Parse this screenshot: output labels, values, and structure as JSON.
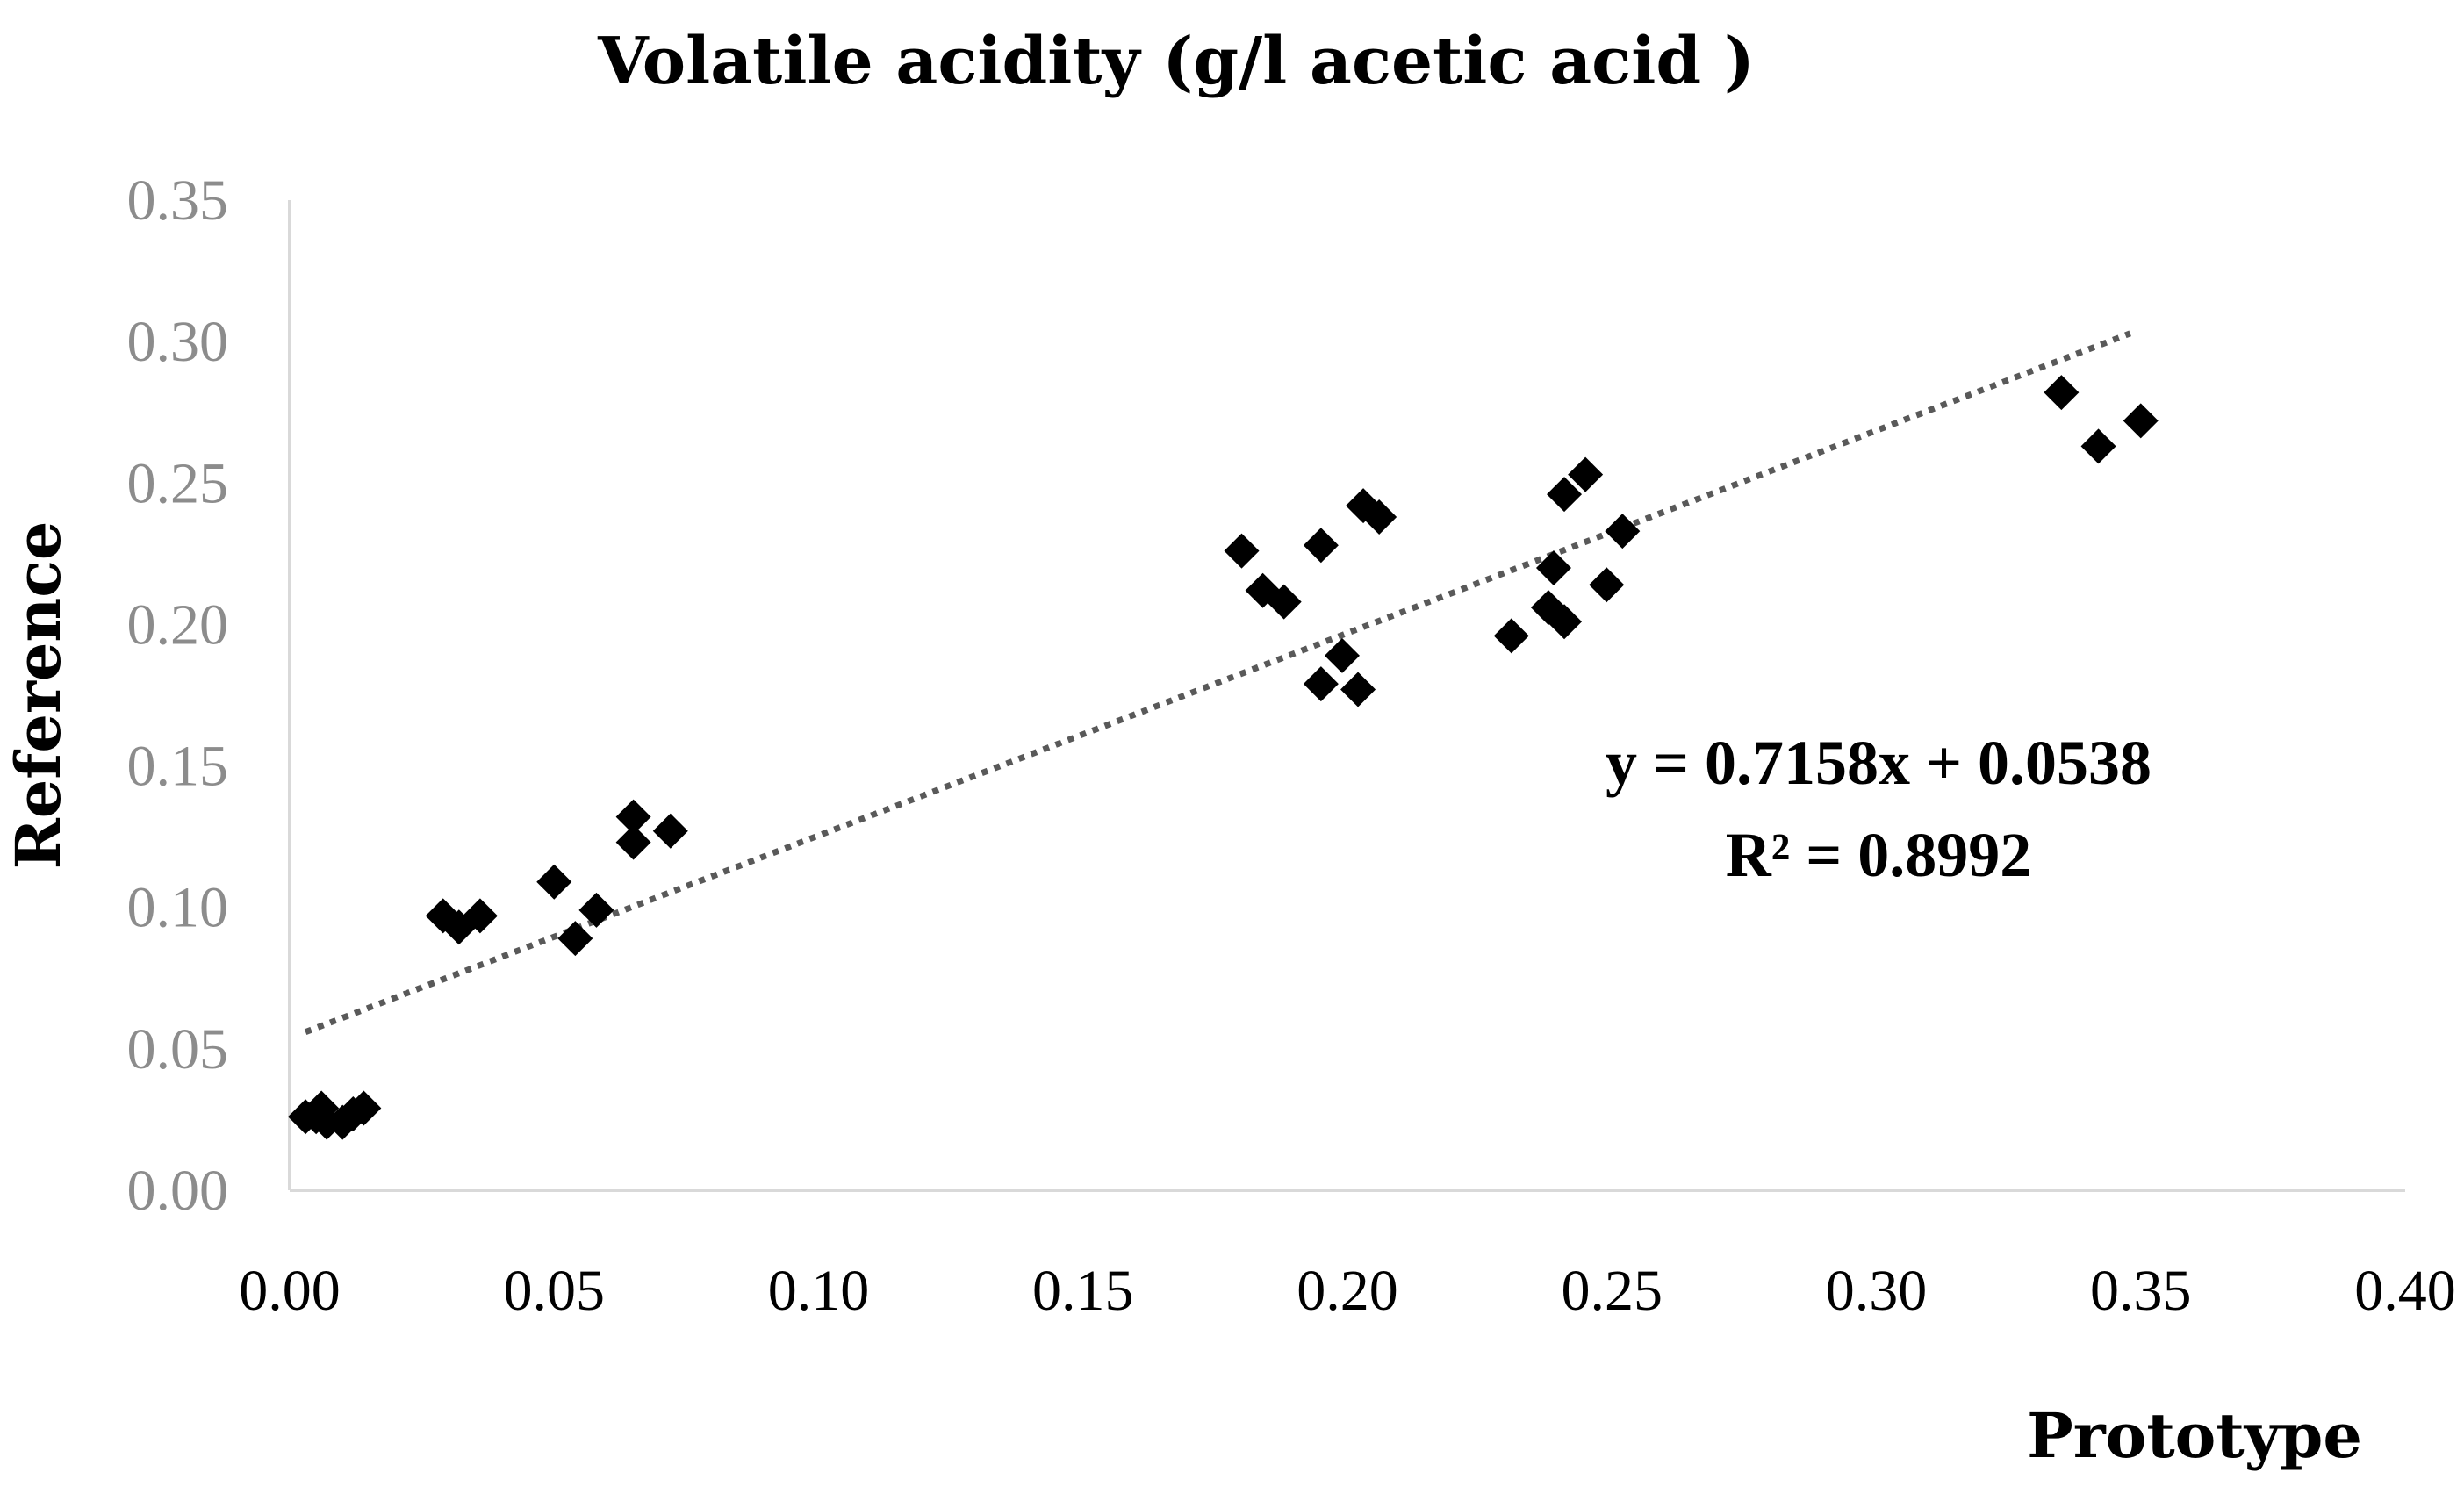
{
  "chart_data": {
    "type": "scatter",
    "title": "Volatile acidity (g/l acetic acid )",
    "xlabel": "Prototype",
    "ylabel": "Reference",
    "xlim": [
      0,
      0.4
    ],
    "ylim": [
      0,
      0.35
    ],
    "x_ticks": [
      "0.00",
      "0.05",
      "0.10",
      "0.15",
      "0.20",
      "0.25",
      "0.30",
      "0.35",
      "0.40"
    ],
    "y_ticks": [
      "0.00",
      "0.05",
      "0.10",
      "0.15",
      "0.20",
      "0.25",
      "0.30",
      "0.35"
    ],
    "grid": false,
    "marker": "diamond",
    "marker_color": "#000000",
    "trendline_color": "#595959",
    "series": [
      {
        "name": "Volatile acidity",
        "points": [
          [
            0.003,
            0.026
          ],
          [
            0.005,
            0.026
          ],
          [
            0.006,
            0.029
          ],
          [
            0.007,
            0.024
          ],
          [
            0.01,
            0.024
          ],
          [
            0.012,
            0.027
          ],
          [
            0.014,
            0.029
          ],
          [
            0.029,
            0.097
          ],
          [
            0.032,
            0.093
          ],
          [
            0.036,
            0.097
          ],
          [
            0.05,
            0.109
          ],
          [
            0.054,
            0.089
          ],
          [
            0.058,
            0.099
          ],
          [
            0.065,
            0.132
          ],
          [
            0.065,
            0.123
          ],
          [
            0.072,
            0.127
          ],
          [
            0.18,
            0.226
          ],
          [
            0.184,
            0.212
          ],
          [
            0.188,
            0.208
          ],
          [
            0.195,
            0.228
          ],
          [
            0.195,
            0.179
          ],
          [
            0.199,
            0.189
          ],
          [
            0.202,
            0.177
          ],
          [
            0.203,
            0.242
          ],
          [
            0.206,
            0.238
          ],
          [
            0.231,
            0.196
          ],
          [
            0.238,
            0.206
          ],
          [
            0.239,
            0.22
          ],
          [
            0.241,
            0.201
          ],
          [
            0.241,
            0.246
          ],
          [
            0.245,
            0.253
          ],
          [
            0.249,
            0.214
          ],
          [
            0.252,
            0.233
          ],
          [
            0.335,
            0.282
          ],
          [
            0.342,
            0.263
          ],
          [
            0.35,
            0.272
          ]
        ]
      }
    ],
    "trendline": {
      "type": "linear",
      "slope": 0.7158,
      "intercept": 0.0538,
      "x_range": [
        0.003,
        0.348
      ],
      "equation_label": "y = 0.7158x + 0.0538",
      "r2_label": "R² = 0.8992"
    }
  }
}
